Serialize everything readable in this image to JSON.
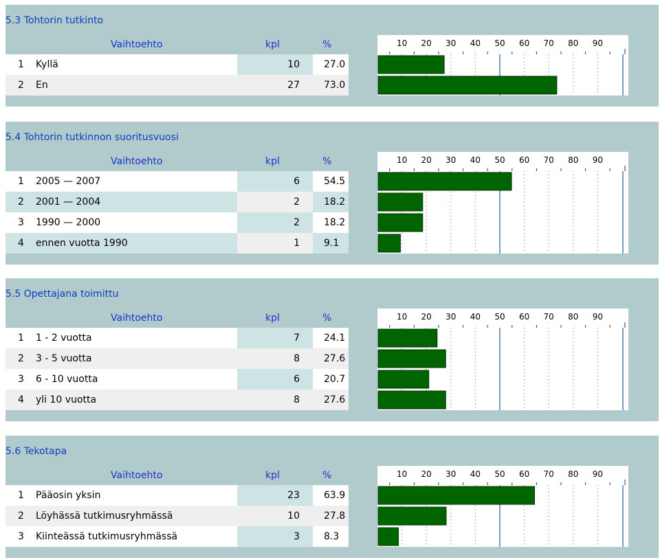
{
  "colors": {
    "panel": "#b1cbcd",
    "bar": "#006400",
    "title": "#0b3fbf",
    "header": "#1a33cc"
  },
  "chart_data": [
    {
      "type": "bar",
      "title": "5.3 Tohtorin tutkinto",
      "columns": {
        "option": "Vaihtoehto",
        "count": "kpl",
        "percent": "%"
      },
      "tick_labels": [
        "10",
        "20",
        "30",
        "40",
        "50",
        "60",
        "70",
        "80",
        "90"
      ],
      "xlim": [
        0,
        100
      ],
      "rows": [
        {
          "n": "1",
          "label": "Kyllä",
          "kpl": "10",
          "pct": "27.0",
          "value": 27.0
        },
        {
          "n": "2",
          "label": "En",
          "kpl": "27",
          "pct": "73.0",
          "value": 73.0
        }
      ]
    },
    {
      "type": "bar",
      "title": "5.4 Tohtorin tutkinnon suoritusvuosi",
      "columns": {
        "option": "Vaihtoehto",
        "count": "kpl",
        "percent": "%"
      },
      "tick_labels": [
        "10",
        "20",
        "30",
        "40",
        "50",
        "60",
        "70",
        "80",
        "90"
      ],
      "xlim": [
        0,
        100
      ],
      "rows": [
        {
          "n": "1",
          "label": "2005 — 2007",
          "kpl": "6",
          "pct": "54.5",
          "value": 54.5
        },
        {
          "n": "2",
          "label": "2001 — 2004",
          "kpl": "2",
          "pct": "18.2",
          "value": 18.2
        },
        {
          "n": "3",
          "label": "1990 — 2000",
          "kpl": "2",
          "pct": "18.2",
          "value": 18.2
        },
        {
          "n": "4",
          "label": "ennen vuotta 1990",
          "kpl": "1",
          "pct": "9.1",
          "value": 9.1
        }
      ]
    },
    {
      "type": "bar",
      "title": "5.5 Opettajana toimittu",
      "columns": {
        "option": "Vaihtoehto",
        "count": "kpl",
        "percent": "%"
      },
      "tick_labels": [
        "10",
        "20",
        "30",
        "40",
        "50",
        "60",
        "70",
        "80",
        "90"
      ],
      "xlim": [
        0,
        100
      ],
      "rows": [
        {
          "n": "1",
          "label": "1 - 2 vuotta",
          "kpl": "7",
          "pct": "24.1",
          "value": 24.1
        },
        {
          "n": "2",
          "label": "3 - 5 vuotta",
          "kpl": "8",
          "pct": "27.6",
          "value": 27.6
        },
        {
          "n": "3",
          "label": "6 - 10 vuotta",
          "kpl": "6",
          "pct": "20.7",
          "value": 20.7
        },
        {
          "n": "4",
          "label": "yli 10 vuotta",
          "kpl": "8",
          "pct": "27.6",
          "value": 27.6
        }
      ]
    },
    {
      "type": "bar",
      "title": "5.6 Tekotapa",
      "columns": {
        "option": "Vaihtoehto",
        "count": "kpl",
        "percent": "%"
      },
      "tick_labels": [
        "10",
        "20",
        "30",
        "40",
        "50",
        "60",
        "70",
        "80",
        "90"
      ],
      "xlim": [
        0,
        100
      ],
      "rows": [
        {
          "n": "1",
          "label": "Pääosin yksin",
          "kpl": "23",
          "pct": "63.9",
          "value": 63.9
        },
        {
          "n": "2",
          "label": "Löyhässä tutkimusryhmässä",
          "kpl": "10",
          "pct": "27.8",
          "value": 27.8
        },
        {
          "n": "3",
          "label": "Kiinteässä tutkimusryhmässä",
          "kpl": "3",
          "pct": "8.3",
          "value": 8.3
        }
      ]
    }
  ]
}
